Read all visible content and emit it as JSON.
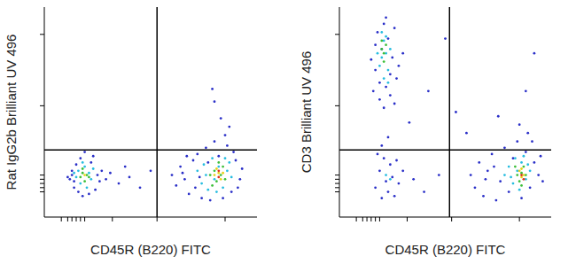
{
  "chart_data": [
    {
      "type": "scatter",
      "x_label": "CD45R (B220) FITC",
      "y_label": "Rat IgG2b Brilliant UV 496",
      "xlim": [
        0,
        100
      ],
      "ylim": [
        0,
        100
      ],
      "xticks": [
        8,
        11,
        13,
        15,
        17,
        19,
        32,
        53,
        85
      ],
      "yticks": [
        12,
        14,
        16,
        18,
        20,
        53,
        87
      ],
      "tick_labels": false,
      "quadrant": {
        "x": 53,
        "y": 32
      },
      "series": [
        {
          "color": "#2a2fc8",
          "x": [
            12,
            13,
            14,
            15,
            13,
            16,
            17,
            14,
            22,
            24,
            25,
            26,
            21,
            18,
            23,
            27,
            11,
            19,
            29,
            31,
            35,
            40,
            45,
            50,
            38,
            60,
            62,
            64,
            66,
            68,
            70,
            72,
            74,
            76,
            78,
            80,
            82,
            84,
            86,
            88,
            90,
            92,
            93,
            89,
            85,
            87,
            83,
            79,
            80,
            77,
            71,
            65,
            67,
            73,
            91
          ],
          "values": [
            18,
            22,
            14,
            25,
            20,
            12,
            28,
            17,
            26,
            13,
            20,
            17,
            11,
            10,
            29,
            22,
            19,
            31,
            18,
            21,
            16,
            19,
            14,
            22,
            24,
            20,
            15,
            24,
            18,
            11,
            27,
            30,
            9,
            33,
            8,
            36,
            29,
            9,
            34,
            12,
            27,
            18,
            23,
            31,
            39,
            43,
            47,
            61,
            55,
            26,
            14,
            21,
            29,
            19,
            14
          ]
        },
        {
          "color": "#27bde0",
          "x": [
            15,
            16,
            17,
            19,
            20,
            21,
            22,
            18,
            23,
            14,
            72,
            74,
            75,
            77,
            79,
            80,
            82,
            84,
            86,
            88,
            85,
            81,
            76,
            87
          ],
          "values": [
            19,
            22,
            16,
            24,
            14,
            21,
            18,
            26,
            23,
            21,
            22,
            16,
            25,
            13,
            28,
            18,
            24,
            14,
            22,
            19,
            28,
            12,
            20,
            26
          ]
        },
        {
          "color": "#3dbf3a",
          "x": [
            17,
            18,
            19,
            20,
            18,
            21,
            78,
            80,
            81,
            83,
            84,
            82,
            79,
            85
          ],
          "values": [
            19,
            21,
            17,
            20,
            23,
            19,
            20,
            22,
            17,
            20,
            24,
            26,
            15,
            18
          ]
        },
        {
          "color": "#e8d21c",
          "x": [
            19,
            80,
            82,
            83,
            81,
            84
          ],
          "values": [
            20,
            20,
            21,
            18,
            23,
            21
          ]
        },
        {
          "color": "#e0301a",
          "x": [
            82,
            82
          ],
          "values": [
            19,
            22
          ]
        }
      ]
    },
    {
      "type": "scatter",
      "x_label": "CD45R (B220) FITC",
      "y_label": "CD3 Brilliant UV 496",
      "xlim": [
        0,
        100
      ],
      "ylim": [
        0,
        100
      ],
      "xticks": [
        8,
        11,
        13,
        15,
        17,
        19,
        32,
        53,
        85
      ],
      "yticks": [
        12,
        14,
        16,
        18,
        20,
        53,
        87
      ],
      "tick_labels": false,
      "quadrant": {
        "x": 52,
        "y": 32
      },
      "series": [
        {
          "color": "#2a2fc8",
          "x": [
            16,
            17,
            18,
            19,
            20,
            21,
            22,
            23,
            24,
            25,
            26,
            27,
            28,
            17,
            19,
            24,
            22,
            26,
            21,
            30,
            15,
            17,
            19,
            20,
            21,
            22,
            23,
            24,
            25,
            26,
            27,
            18,
            28,
            20,
            23,
            30,
            35,
            40,
            47,
            33,
            42,
            55,
            60,
            75,
            88,
            92,
            50,
            62,
            64,
            66,
            68,
            70,
            72,
            74,
            76,
            78,
            80,
            82,
            84,
            86,
            88,
            90,
            92,
            94,
            96,
            89,
            91,
            85,
            95,
            73,
            69
          ],
          "values": [
            60,
            70,
            88,
            56,
            80,
            92,
            62,
            85,
            58,
            76,
            90,
            66,
            72,
            82,
            64,
            68,
            95,
            54,
            52,
            78,
            75,
            14,
            22,
            9,
            28,
            17,
            12,
            25,
            19,
            10,
            27,
            30,
            16,
            34,
            38,
            22,
            18,
            12,
            20,
            45,
            60,
            50,
            40,
            48,
            60,
            78,
            85,
            20,
            14,
            26,
            10,
            22,
            30,
            8,
            17,
            33,
            12,
            28,
            36,
            9,
            31,
            14,
            26,
            20,
            17,
            40,
            36,
            44,
            29,
            24,
            18
          ]
        },
        {
          "color": "#27bde0",
          "x": [
            19,
            20,
            21,
            22,
            23,
            21,
            20,
            24,
            22,
            18,
            23,
            22,
            24,
            78,
            80,
            82,
            84,
            86,
            88,
            85,
            87,
            90,
            83,
            81,
            89
          ],
          "values": [
            72,
            76,
            84,
            78,
            70,
            66,
            88,
            80,
            86,
            78,
            64,
            20,
            18,
            20,
            24,
            16,
            22,
            26,
            18,
            13,
            29,
            22,
            28,
            19,
            25
          ]
        },
        {
          "color": "#3dbf3a",
          "x": [
            20,
            21,
            22,
            21,
            20,
            84,
            86,
            85,
            87,
            88,
            83,
            86
          ],
          "values": [
            80,
            78,
            82,
            74,
            84,
            20,
            21,
            17,
            24,
            20,
            24,
            15
          ]
        },
        {
          "color": "#e8d21c",
          "x": [
            86,
            85,
            87,
            86
          ],
          "values": [
            19,
            22,
            20,
            23
          ]
        },
        {
          "color": "#e0301a",
          "x": [
            86,
            87
          ],
          "values": [
            20,
            18
          ]
        }
      ]
    }
  ]
}
